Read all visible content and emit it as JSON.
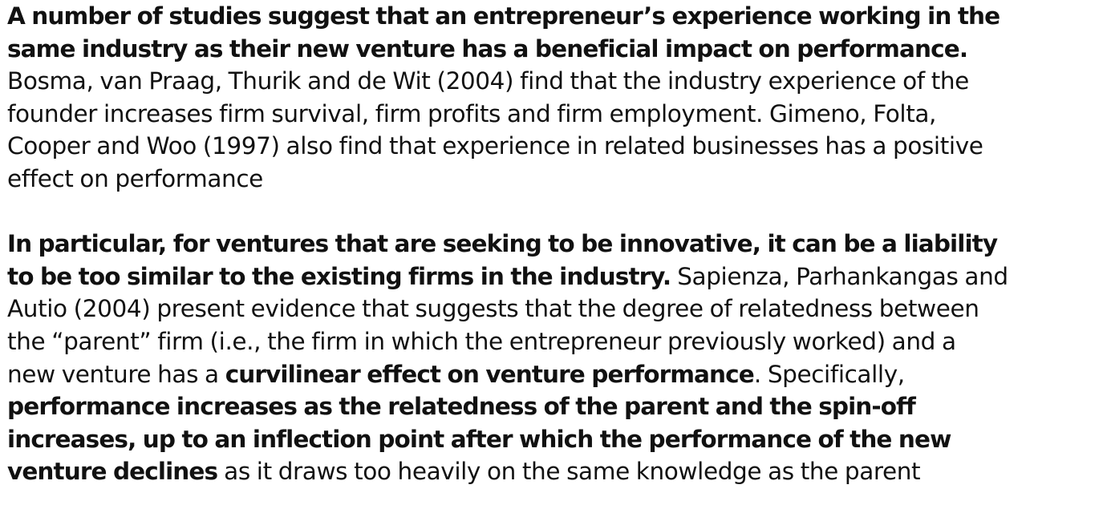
{
  "paragraphs": [
    {
      "lines": [
        [
          {
            "text": "A number of studies suggest that an entrepreneur’s experience working in the",
            "bold": true
          }
        ],
        [
          {
            "text": "same industry as their new venture has a beneficial impact on performance.",
            "bold": true
          }
        ],
        [
          {
            "text": "Bosma, van Praag, Thurik and de Wit (2004) find that the industry experience of the",
            "bold": false
          }
        ],
        [
          {
            "text": "founder increases firm survival, firm profits and firm employment. Gimeno, Folta,",
            "bold": false
          }
        ],
        [
          {
            "text": "Cooper and Woo (1997) also find that experience in related businesses has a positive",
            "bold": false
          }
        ],
        [
          {
            "text": "effect on performance",
            "bold": false
          }
        ]
      ]
    },
    {
      "lines": [
        [
          {
            "text": "In particular, for ventures that are seeking to be innovative, it can be a liability",
            "bold": true
          }
        ],
        [
          {
            "text": "to be too similar to the existing firms in the industry.",
            "bold": true
          },
          {
            "text": " Sapienza, Parhankangas and",
            "bold": false
          }
        ],
        [
          {
            "text": "Autio (2004) present evidence that suggests that the degree of relatedness between",
            "bold": false
          }
        ],
        [
          {
            "text": "the “parent” firm (i.e., the firm in which the entrepreneur previously worked) and a",
            "bold": false
          }
        ],
        [
          {
            "text": "new venture has a ",
            "bold": false
          },
          {
            "text": "curvilinear effect on venture performance",
            "bold": true
          },
          {
            "text": ". Specifically,",
            "bold": false
          }
        ],
        [
          {
            "text": "performance increases as the relatedness of the parent and the spin-off",
            "bold": true
          }
        ],
        [
          {
            "text": "increases, up to an inflection point after which the performance of the new",
            "bold": true
          }
        ],
        [
          {
            "text": "venture declines",
            "bold": true
          },
          {
            "text": " as it draws too heavily on the same knowledge as the parent",
            "bold": false
          }
        ]
      ]
    }
  ]
}
